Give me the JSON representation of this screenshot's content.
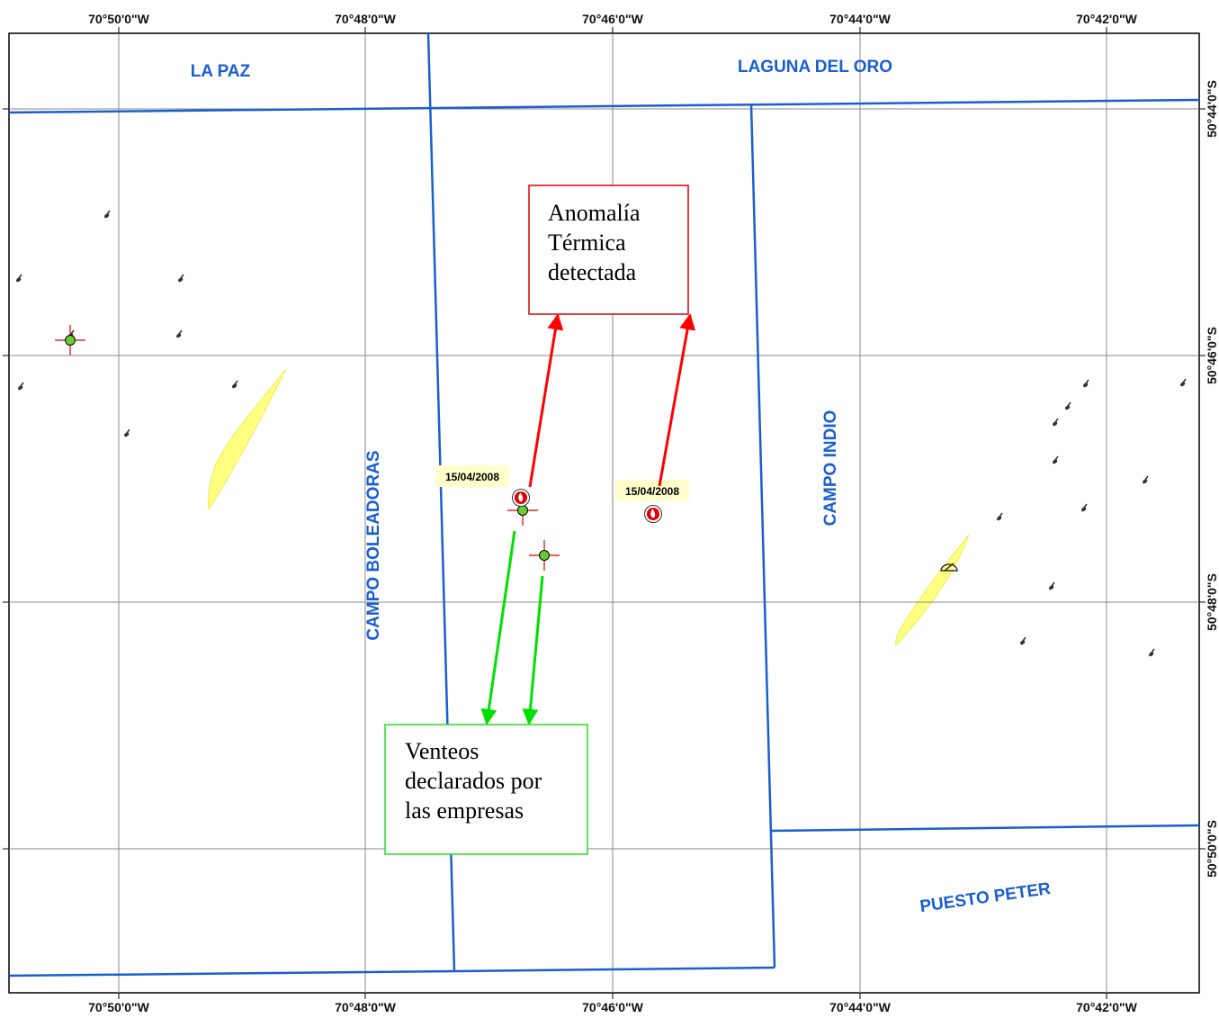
{
  "colors": {
    "boundary": "#1a5fd0",
    "field_label": "#1a5fd0",
    "grid": "#8a8a8a",
    "anomaly_arrow": "#ff0000",
    "venteo_arrow": "#00e000",
    "anomaly_box": "#e00000",
    "venteo_box": "#22dd22",
    "yellow_area": "#ffff80",
    "date_bg": "#ffffcc",
    "well": "#333333"
  },
  "longitude_labels": [
    "70°50'0\"W",
    "70°48'0\"W",
    "70°46'0\"W",
    "70°44'0\"W",
    "70°42'0\"W"
  ],
  "latitude_labels": [
    "50°44'0\"S",
    "50°46'0\"S",
    "50°48'0\"S",
    "50°50'0\"S"
  ],
  "fields": {
    "la_paz": "LA PAZ",
    "laguna_del_oro": "LAGUNA DEL ORO",
    "campo_boleadoras": "CAMPO BOLEADORAS",
    "campo_indio": "CAMPO INDIO",
    "puesto_peter": "PUESTO PETER"
  },
  "anomaly_dates": [
    "15/04/2008",
    "15/04/2008"
  ],
  "callouts": {
    "anomaly": [
      "Anomalía",
      "Térmica",
      "detectada"
    ],
    "venteos": [
      "Venteos",
      "declarados por",
      "las empresas"
    ]
  },
  "legend_symbols": {
    "thermal_anomaly": "fire-icon",
    "declared_venting": "flare-crosshair-icon",
    "well": "oil-well-icon"
  }
}
